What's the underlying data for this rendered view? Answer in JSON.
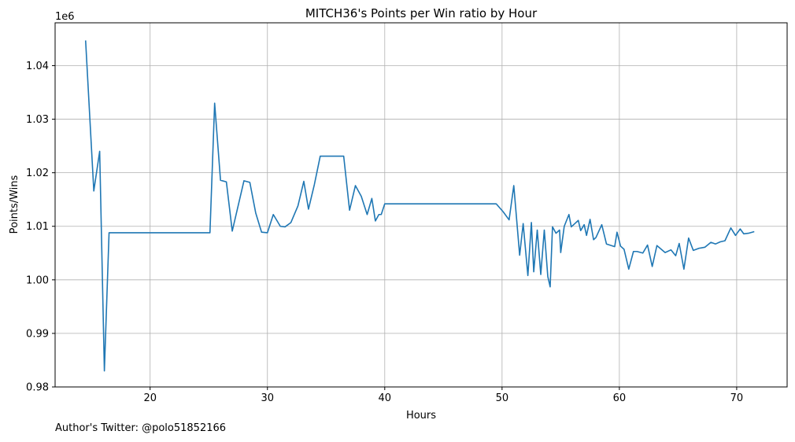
{
  "chart_data": {
    "type": "line",
    "title": "MITCH36's Points per Win ratio by Hour",
    "xlabel": "Hours",
    "ylabel": "Points/Wins",
    "y_offset_label": "1e6",
    "xlim": [
      11.9,
      74.3
    ],
    "ylim": [
      0.98,
      1.048
    ],
    "x_ticks": [
      20,
      30,
      40,
      50,
      60,
      70
    ],
    "x_tick_labels": [
      "20",
      "30",
      "40",
      "50",
      "60",
      "70"
    ],
    "y_ticks": [
      0.98,
      0.99,
      1.0,
      1.01,
      1.02,
      1.03,
      1.04
    ],
    "y_tick_labels": [
      "0.98",
      "0.99",
      "1.00",
      "1.01",
      "1.02",
      "1.03",
      "1.04"
    ],
    "grid": true,
    "line_color": "#1f77b4",
    "series": [
      {
        "x": [
          14.5,
          15.2,
          15.7,
          16.1,
          16.5,
          25.1,
          25.5,
          26.0,
          26.5,
          27.0,
          28.0,
          28.5,
          29.0,
          29.5,
          30.0,
          30.5,
          31.1,
          31.5,
          32.0,
          32.6,
          33.1,
          33.5,
          34.0,
          34.5,
          36.5,
          37.0,
          37.5,
          38.0,
          38.5,
          38.9,
          39.2,
          39.5,
          39.7,
          40.0,
          49.5,
          50.1,
          50.6,
          51.0,
          51.5,
          51.8,
          52.2,
          52.5,
          52.7,
          53.0,
          53.3,
          53.6,
          53.9,
          54.1,
          54.3,
          54.6,
          54.9,
          55.0,
          55.3,
          55.7,
          55.9,
          56.5,
          56.7,
          57.0,
          57.2,
          57.5,
          57.8,
          58.0,
          58.5,
          58.9,
          59.6,
          59.8,
          60.1,
          60.4,
          60.8,
          61.2,
          61.5,
          62.0,
          62.4,
          62.8,
          63.2,
          63.9,
          64.4,
          64.8,
          65.1,
          65.5,
          65.9,
          66.3,
          66.8,
          67.3,
          67.8,
          68.2,
          68.6,
          69.0,
          69.5,
          69.9,
          70.3,
          70.6,
          71.0,
          71.5
        ],
        "values": [
          1.0447,
          1.0166,
          1.024,
          0.983,
          1.0088,
          1.0088,
          1.033,
          1.0186,
          1.0183,
          1.0091,
          1.0185,
          1.0182,
          1.0125,
          1.0089,
          1.0088,
          1.0122,
          1.01,
          1.0099,
          1.0107,
          1.0138,
          1.0184,
          1.0132,
          1.0178,
          1.0231,
          1.0231,
          1.013,
          1.0176,
          1.0156,
          1.0122,
          1.0152,
          1.011,
          1.0122,
          1.0122,
          1.0142,
          1.0142,
          1.0127,
          1.0112,
          1.0176,
          1.0046,
          1.0105,
          1.0008,
          1.0107,
          1.0015,
          1.0093,
          1.001,
          1.0093,
          1.0006,
          0.9987,
          1.0099,
          1.0087,
          1.0093,
          1.0051,
          1.01,
          1.0122,
          1.0099,
          1.0111,
          1.0092,
          1.0103,
          1.0083,
          1.0113,
          1.0075,
          1.0079,
          1.0103,
          1.0067,
          1.0062,
          1.0089,
          1.0063,
          1.0057,
          1.002,
          1.0053,
          1.0053,
          1.005,
          1.0065,
          1.0025,
          1.0064,
          1.0051,
          1.0056,
          1.0045,
          1.0068,
          1.002,
          1.0078,
          1.0055,
          1.0059,
          1.0061,
          1.007,
          1.0067,
          1.0071,
          1.0073,
          1.0097,
          1.0083,
          1.0095,
          1.0086,
          1.0087,
          1.009
        ]
      }
    ]
  },
  "footer": {
    "credit": "Author's Twitter: @polo51852166"
  }
}
